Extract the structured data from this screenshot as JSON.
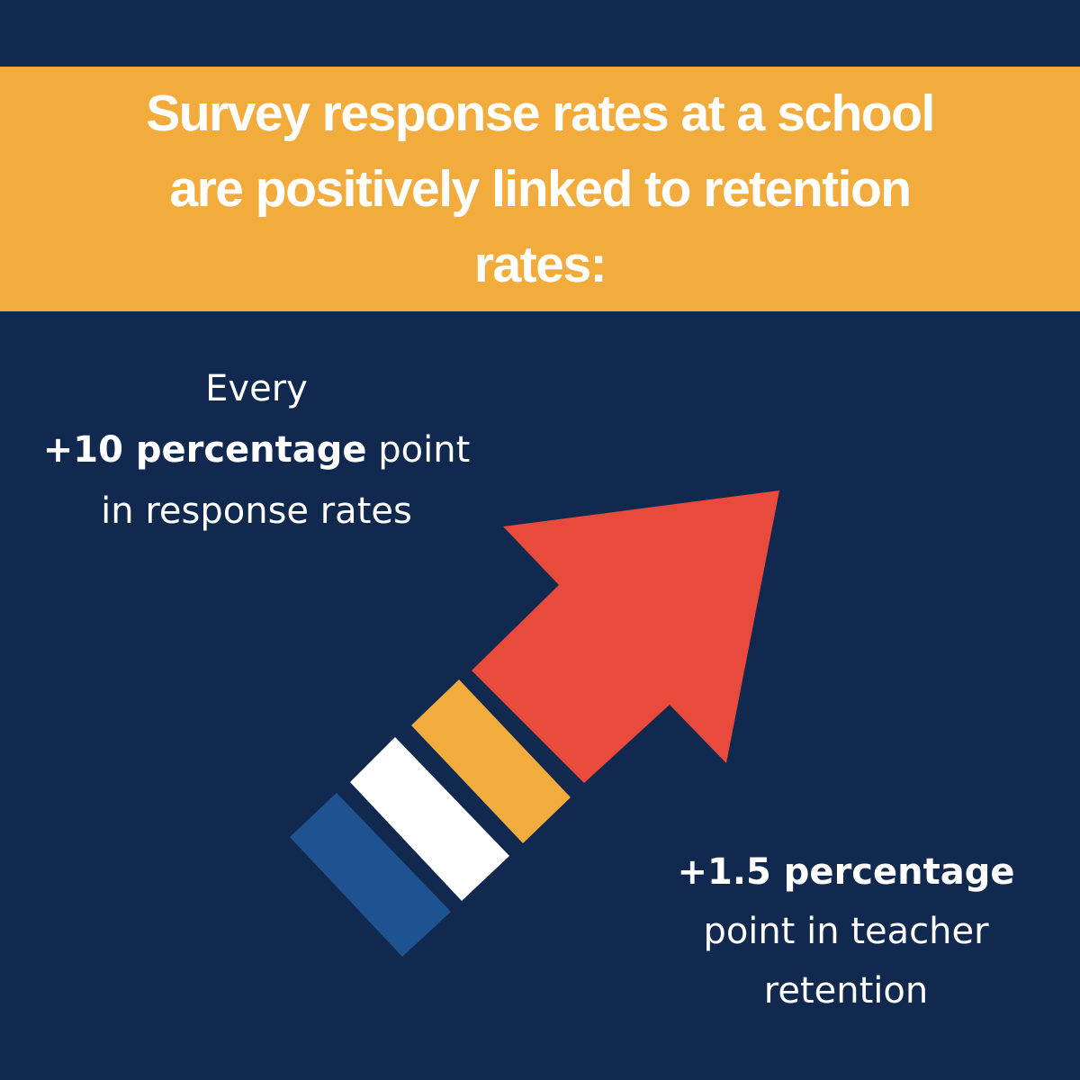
{
  "colors": {
    "background": "#11294f",
    "banner": "#f2ac3e",
    "text": "#ffffff",
    "arrow": "#e84a3c",
    "stripe_orange": "#f2ac3e",
    "stripe_white": "#ffffff",
    "stripe_blue": "#1f5290"
  },
  "title": {
    "line1": "Survey response rates at a school",
    "line2": "are positively linked to retention",
    "line3": "rates:"
  },
  "stat_left": {
    "line1": "Every",
    "line2_bold": "+10 percentage",
    "line2_rest": " point",
    "line3": "in response rates"
  },
  "stat_right": {
    "line1_bold": "+1.5 percentage",
    "line2": "point in teacher",
    "line3": "retention"
  },
  "icons": {
    "arrow": "up-right-arrow-icon"
  }
}
